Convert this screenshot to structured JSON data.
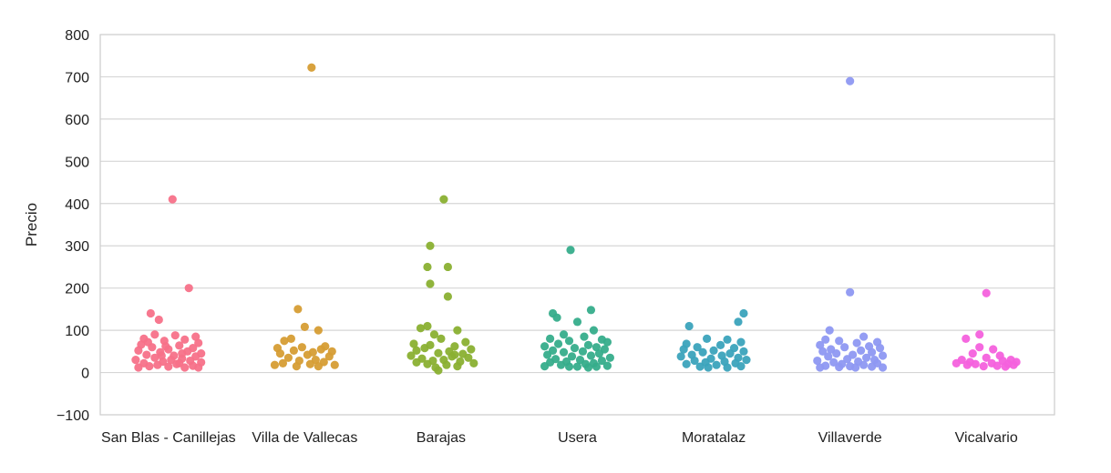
{
  "chart_data": {
    "type": "scatter",
    "subtype": "strip",
    "title": "",
    "xlabel": "",
    "ylabel": "Precio",
    "ylim": [
      -100,
      800
    ],
    "yticks": [
      -100,
      0,
      100,
      200,
      300,
      400,
      500,
      600,
      700,
      800
    ],
    "grid": true,
    "categories": [
      "San Blas - Canillejas",
      "Villa de Vallecas",
      "Barajas",
      "Usera",
      "Moratalaz",
      "Villaverde",
      "Vicalvario"
    ],
    "series": [
      {
        "color": "#f77189",
        "points": [
          {
            "x": 0.03,
            "y": 410
          },
          {
            "x": 0.15,
            "y": 200
          },
          {
            "x": -0.13,
            "y": 140
          },
          {
            "x": -0.07,
            "y": 125
          },
          {
            "x": -0.1,
            "y": 90
          },
          {
            "x": 0.05,
            "y": 88
          },
          {
            "x": 0.2,
            "y": 85
          },
          {
            "x": -0.18,
            "y": 80
          },
          {
            "x": 0.12,
            "y": 78
          },
          {
            "x": -0.03,
            "y": 75
          },
          {
            "x": 0.22,
            "y": 70
          },
          {
            "x": -0.2,
            "y": 66
          },
          {
            "x": 0.08,
            "y": 64
          },
          {
            "x": -0.12,
            "y": 60
          },
          {
            "x": 0.18,
            "y": 58
          },
          {
            "x": 0.0,
            "y": 55
          },
          {
            "x": -0.22,
            "y": 52
          },
          {
            "x": 0.14,
            "y": 50
          },
          {
            "x": -0.06,
            "y": 48
          },
          {
            "x": 0.24,
            "y": 45
          },
          {
            "x": -0.16,
            "y": 42
          },
          {
            "x": 0.04,
            "y": 40
          },
          {
            "x": 0.2,
            "y": 38
          },
          {
            "x": -0.1,
            "y": 35
          },
          {
            "x": 0.1,
            "y": 33
          },
          {
            "x": -0.24,
            "y": 30
          },
          {
            "x": 0.16,
            "y": 28
          },
          {
            "x": -0.04,
            "y": 26
          },
          {
            "x": 0.24,
            "y": 24
          },
          {
            "x": -0.18,
            "y": 22
          },
          {
            "x": 0.06,
            "y": 20
          },
          {
            "x": -0.08,
            "y": 18
          },
          {
            "x": 0.18,
            "y": 16
          },
          {
            "x": -0.14,
            "y": 15
          },
          {
            "x": 0.0,
            "y": 14
          },
          {
            "x": 0.12,
            "y": 12
          },
          {
            "x": -0.22,
            "y": 12
          },
          {
            "x": 0.22,
            "y": 12
          },
          {
            "x": -0.02,
            "y": 62
          },
          {
            "x": 0.1,
            "y": 45
          },
          {
            "x": -0.15,
            "y": 72
          },
          {
            "x": 0.02,
            "y": 30
          },
          {
            "x": -0.05,
            "y": 40
          },
          {
            "x": 0.08,
            "y": 22
          }
        ]
      },
      {
        "color": "#d69d34",
        "points": [
          {
            "x": 0.05,
            "y": 722
          },
          {
            "x": -0.05,
            "y": 150
          },
          {
            "x": 0.0,
            "y": 108
          },
          {
            "x": 0.1,
            "y": 100
          },
          {
            "x": -0.1,
            "y": 80
          },
          {
            "x": -0.15,
            "y": 75
          },
          {
            "x": 0.15,
            "y": 62
          },
          {
            "x": -0.2,
            "y": 58
          },
          {
            "x": 0.12,
            "y": 55
          },
          {
            "x": -0.08,
            "y": 52
          },
          {
            "x": 0.2,
            "y": 50
          },
          {
            "x": -0.18,
            "y": 45
          },
          {
            "x": 0.02,
            "y": 42
          },
          {
            "x": 0.18,
            "y": 38
          },
          {
            "x": -0.12,
            "y": 35
          },
          {
            "x": 0.08,
            "y": 30
          },
          {
            "x": -0.04,
            "y": 28
          },
          {
            "x": 0.14,
            "y": 25
          },
          {
            "x": -0.16,
            "y": 22
          },
          {
            "x": 0.04,
            "y": 20
          },
          {
            "x": -0.22,
            "y": 18
          },
          {
            "x": 0.22,
            "y": 18
          },
          {
            "x": -0.06,
            "y": 15
          },
          {
            "x": 0.1,
            "y": 15
          },
          {
            "x": -0.02,
            "y": 60
          },
          {
            "x": 0.06,
            "y": 48
          }
        ]
      },
      {
        "color": "#8ab031",
        "points": [
          {
            "x": 0.02,
            "y": 410
          },
          {
            "x": -0.08,
            "y": 300
          },
          {
            "x": -0.1,
            "y": 250
          },
          {
            "x": 0.05,
            "y": 250
          },
          {
            "x": -0.08,
            "y": 210
          },
          {
            "x": 0.05,
            "y": 180
          },
          {
            "x": -0.15,
            "y": 105
          },
          {
            "x": -0.1,
            "y": 110
          },
          {
            "x": 0.12,
            "y": 100
          },
          {
            "x": -0.05,
            "y": 90
          },
          {
            "x": 0.18,
            "y": 72
          },
          {
            "x": -0.2,
            "y": 68
          },
          {
            "x": 0.0,
            "y": 80
          },
          {
            "x": 0.1,
            "y": 62
          },
          {
            "x": -0.12,
            "y": 58
          },
          {
            "x": 0.22,
            "y": 55
          },
          {
            "x": -0.18,
            "y": 52
          },
          {
            "x": 0.06,
            "y": 50
          },
          {
            "x": -0.02,
            "y": 46
          },
          {
            "x": 0.16,
            "y": 44
          },
          {
            "x": -0.22,
            "y": 40
          },
          {
            "x": 0.08,
            "y": 38
          },
          {
            "x": 0.2,
            "y": 35
          },
          {
            "x": -0.14,
            "y": 33
          },
          {
            "x": 0.02,
            "y": 30
          },
          {
            "x": -0.06,
            "y": 28
          },
          {
            "x": 0.14,
            "y": 26
          },
          {
            "x": -0.18,
            "y": 24
          },
          {
            "x": 0.24,
            "y": 22
          },
          {
            "x": -0.1,
            "y": 20
          },
          {
            "x": 0.04,
            "y": 18
          },
          {
            "x": 0.12,
            "y": 15
          },
          {
            "x": -0.04,
            "y": 12
          },
          {
            "x": -0.02,
            "y": 5
          },
          {
            "x": 0.1,
            "y": 42
          },
          {
            "x": -0.08,
            "y": 65
          }
        ]
      },
      {
        "color": "#36ad8b",
        "points": [
          {
            "x": -0.05,
            "y": 290
          },
          {
            "x": 0.1,
            "y": 148
          },
          {
            "x": -0.18,
            "y": 140
          },
          {
            "x": -0.15,
            "y": 130
          },
          {
            "x": 0.0,
            "y": 120
          },
          {
            "x": 0.12,
            "y": 100
          },
          {
            "x": -0.1,
            "y": 90
          },
          {
            "x": 0.05,
            "y": 85
          },
          {
            "x": -0.2,
            "y": 80
          },
          {
            "x": 0.18,
            "y": 78
          },
          {
            "x": -0.06,
            "y": 75
          },
          {
            "x": 0.22,
            "y": 72
          },
          {
            "x": -0.14,
            "y": 68
          },
          {
            "x": 0.08,
            "y": 65
          },
          {
            "x": -0.24,
            "y": 62
          },
          {
            "x": 0.14,
            "y": 60
          },
          {
            "x": -0.02,
            "y": 58
          },
          {
            "x": 0.2,
            "y": 55
          },
          {
            "x": -0.18,
            "y": 52
          },
          {
            "x": 0.04,
            "y": 50
          },
          {
            "x": -0.1,
            "y": 48
          },
          {
            "x": 0.16,
            "y": 45
          },
          {
            "x": -0.22,
            "y": 42
          },
          {
            "x": 0.1,
            "y": 40
          },
          {
            "x": -0.04,
            "y": 38
          },
          {
            "x": 0.24,
            "y": 35
          },
          {
            "x": -0.16,
            "y": 32
          },
          {
            "x": 0.02,
            "y": 30
          },
          {
            "x": 0.18,
            "y": 28
          },
          {
            "x": -0.08,
            "y": 26
          },
          {
            "x": -0.2,
            "y": 24
          },
          {
            "x": 0.12,
            "y": 22
          },
          {
            "x": 0.06,
            "y": 20
          },
          {
            "x": -0.12,
            "y": 18
          },
          {
            "x": 0.22,
            "y": 16
          },
          {
            "x": -0.24,
            "y": 15
          },
          {
            "x": 0.0,
            "y": 14
          },
          {
            "x": 0.14,
            "y": 14
          },
          {
            "x": -0.06,
            "y": 14
          },
          {
            "x": 0.08,
            "y": 12
          }
        ]
      },
      {
        "color": "#3ba3bc",
        "points": [
          {
            "x": 0.22,
            "y": 140
          },
          {
            "x": 0.18,
            "y": 120
          },
          {
            "x": -0.18,
            "y": 110
          },
          {
            "x": -0.05,
            "y": 80
          },
          {
            "x": 0.1,
            "y": 78
          },
          {
            "x": 0.2,
            "y": 72
          },
          {
            "x": -0.2,
            "y": 68
          },
          {
            "x": 0.05,
            "y": 65
          },
          {
            "x": -0.12,
            "y": 60
          },
          {
            "x": 0.15,
            "y": 58
          },
          {
            "x": -0.22,
            "y": 55
          },
          {
            "x": 0.0,
            "y": 52
          },
          {
            "x": 0.22,
            "y": 50
          },
          {
            "x": -0.08,
            "y": 48
          },
          {
            "x": 0.12,
            "y": 45
          },
          {
            "x": -0.16,
            "y": 42
          },
          {
            "x": 0.06,
            "y": 40
          },
          {
            "x": -0.24,
            "y": 38
          },
          {
            "x": 0.18,
            "y": 35
          },
          {
            "x": -0.02,
            "y": 33
          },
          {
            "x": 0.24,
            "y": 30
          },
          {
            "x": -0.14,
            "y": 28
          },
          {
            "x": 0.08,
            "y": 26
          },
          {
            "x": -0.06,
            "y": 24
          },
          {
            "x": 0.16,
            "y": 22
          },
          {
            "x": -0.2,
            "y": 20
          },
          {
            "x": 0.02,
            "y": 18
          },
          {
            "x": 0.2,
            "y": 15
          },
          {
            "x": -0.1,
            "y": 14
          },
          {
            "x": 0.1,
            "y": 12
          },
          {
            "x": -0.04,
            "y": 12
          }
        ]
      },
      {
        "color": "#8e98f2",
        "points": [
          {
            "x": 0.0,
            "y": 690
          },
          {
            "x": 0.0,
            "y": 190
          },
          {
            "x": -0.15,
            "y": 100
          },
          {
            "x": 0.1,
            "y": 85
          },
          {
            "x": -0.18,
            "y": 78
          },
          {
            "x": -0.08,
            "y": 75
          },
          {
            "x": 0.2,
            "y": 72
          },
          {
            "x": 0.05,
            "y": 70
          },
          {
            "x": -0.22,
            "y": 65
          },
          {
            "x": 0.14,
            "y": 62
          },
          {
            "x": -0.04,
            "y": 60
          },
          {
            "x": 0.22,
            "y": 58
          },
          {
            "x": -0.14,
            "y": 55
          },
          {
            "x": 0.08,
            "y": 52
          },
          {
            "x": -0.2,
            "y": 50
          },
          {
            "x": 0.16,
            "y": 48
          },
          {
            "x": -0.1,
            "y": 45
          },
          {
            "x": 0.02,
            "y": 42
          },
          {
            "x": 0.24,
            "y": 40
          },
          {
            "x": -0.16,
            "y": 38
          },
          {
            "x": 0.12,
            "y": 35
          },
          {
            "x": -0.02,
            "y": 32
          },
          {
            "x": 0.18,
            "y": 30
          },
          {
            "x": -0.24,
            "y": 28
          },
          {
            "x": 0.06,
            "y": 26
          },
          {
            "x": -0.12,
            "y": 24
          },
          {
            "x": 0.2,
            "y": 22
          },
          {
            "x": -0.06,
            "y": 20
          },
          {
            "x": 0.1,
            "y": 18
          },
          {
            "x": -0.18,
            "y": 16
          },
          {
            "x": 0.0,
            "y": 15
          },
          {
            "x": 0.16,
            "y": 14
          },
          {
            "x": -0.08,
            "y": 13
          },
          {
            "x": 0.24,
            "y": 12
          },
          {
            "x": -0.22,
            "y": 12
          },
          {
            "x": 0.04,
            "y": 12
          }
        ]
      },
      {
        "color": "#f461dd",
        "points": [
          {
            "x": 0.0,
            "y": 188
          },
          {
            "x": -0.05,
            "y": 90
          },
          {
            "x": -0.15,
            "y": 80
          },
          {
            "x": -0.05,
            "y": 60
          },
          {
            "x": 0.05,
            "y": 55
          },
          {
            "x": -0.1,
            "y": 45
          },
          {
            "x": 0.1,
            "y": 40
          },
          {
            "x": 0.0,
            "y": 35
          },
          {
            "x": -0.18,
            "y": 30
          },
          {
            "x": 0.18,
            "y": 30
          },
          {
            "x": 0.12,
            "y": 28
          },
          {
            "x": -0.12,
            "y": 25
          },
          {
            "x": 0.22,
            "y": 25
          },
          {
            "x": -0.22,
            "y": 22
          },
          {
            "x": 0.04,
            "y": 22
          },
          {
            "x": 0.16,
            "y": 20
          },
          {
            "x": -0.08,
            "y": 20
          },
          {
            "x": 0.2,
            "y": 18
          },
          {
            "x": -0.14,
            "y": 18
          },
          {
            "x": 0.08,
            "y": 16
          },
          {
            "x": -0.02,
            "y": 15
          },
          {
            "x": 0.14,
            "y": 14
          }
        ]
      }
    ]
  }
}
